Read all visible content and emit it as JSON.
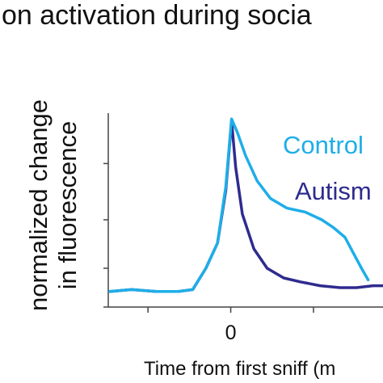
{
  "chart_data": {
    "type": "line",
    "title": "on activation during socia",
    "ylabel_line1": "normalized change",
    "ylabel_line2": "in fluorescence",
    "xlabel": "Time from first sniff (m",
    "x_tick_labels": [
      {
        "x": 0,
        "label": "0"
      }
    ],
    "x_range": [
      -7.4,
      9.2
    ],
    "y_range": [
      0,
      1
    ],
    "x_ticks_unlabeled": [
      -5,
      5
    ],
    "y_ticks_unlabeled": [
      0.2,
      0.45,
      0.74
    ],
    "legend_placement": "right",
    "grid": false,
    "series": [
      {
        "name": "Control",
        "color": "#1eaee8",
        "x": [
          -7.3,
          -6,
          -4.5,
          -3.2,
          -2.3,
          -1.5,
          -0.8,
          -0.3,
          0.05,
          0.4,
          0.9,
          1.6,
          2.4,
          3.4,
          4.5,
          5.5,
          6.2,
          6.9,
          7.4,
          7.9,
          8.3
        ],
        "y": [
          0.08,
          0.09,
          0.08,
          0.08,
          0.09,
          0.2,
          0.33,
          0.62,
          0.97,
          0.9,
          0.78,
          0.65,
          0.56,
          0.51,
          0.49,
          0.45,
          0.41,
          0.36,
          0.28,
          0.2,
          0.14
        ]
      },
      {
        "name": "Autism",
        "color": "#2e2b8f",
        "x": [
          -7.3,
          -6,
          -4.5,
          -3.2,
          -2.3,
          -1.5,
          -0.8,
          -0.3,
          0.05,
          0.3,
          0.7,
          1.4,
          2.2,
          3.2,
          4.2,
          5.4,
          6.6,
          7.6,
          8.6,
          9.2
        ],
        "y": [
          0.08,
          0.09,
          0.08,
          0.08,
          0.09,
          0.2,
          0.33,
          0.6,
          0.96,
          0.72,
          0.48,
          0.3,
          0.2,
          0.15,
          0.13,
          0.11,
          0.1,
          0.1,
          0.11,
          0.11
        ]
      }
    ]
  }
}
